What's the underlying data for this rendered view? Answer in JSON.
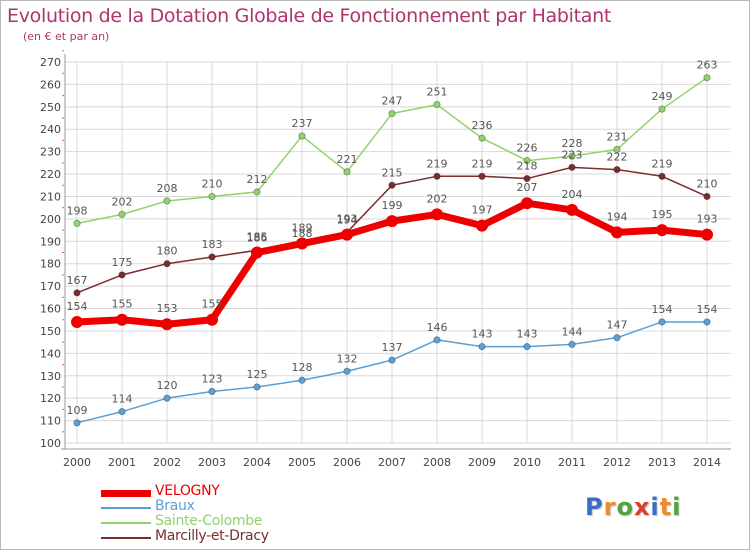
{
  "title": "Evolution de la Dotation Globale de Fonctionnement par Habitant",
  "subtitle": "(en € et par an)",
  "logo": {
    "text": "Proxiti",
    "letter_colors": [
      "#3b6cc6",
      "#f08a2c",
      "#4fa53b",
      "#e03c2c",
      "#3b6cc6",
      "#f08a2c",
      "#4fa53b"
    ]
  },
  "chart_data": {
    "type": "line",
    "x": [
      "2000",
      "2001",
      "2002",
      "2003",
      "2004",
      "2005",
      "2006",
      "2007",
      "2008",
      "2009",
      "2010",
      "2011",
      "2012",
      "2013",
      "2014"
    ],
    "ylim": [
      100,
      270
    ],
    "yticks": [
      "100",
      "110",
      "120",
      "130",
      "140",
      "150",
      "160",
      "170",
      "180",
      "190",
      "200",
      "210",
      "220",
      "230",
      "240",
      "250",
      "260",
      "270"
    ],
    "grid": true,
    "legend_position": "bottom-left",
    "series": [
      {
        "name": "Sainte-Colombe",
        "color": "#90d36a",
        "values": [
          198,
          202,
          208,
          210,
          212,
          237,
          221,
          247,
          251,
          236,
          226,
          228,
          231,
          249,
          263
        ],
        "labels": [
          "198",
          "202",
          "208",
          "210",
          "212",
          "237",
          "221",
          "247",
          "251",
          "236",
          "226",
          "228",
          "231",
          "249",
          "263"
        ]
      },
      {
        "name": "Marcilly-et-Dracy",
        "color": "#7a2e2e",
        "values": [
          167,
          175,
          180,
          183,
          186,
          188,
          194,
          215,
          219,
          219,
          218,
          223,
          222,
          219,
          210
        ],
        "labels": [
          "167",
          "175",
          "180",
          "183",
          "186",
          "188",
          "194",
          "215",
          "219",
          "219",
          "218",
          "223",
          "222",
          "219",
          "210"
        ]
      },
      {
        "name": "Braux",
        "color": "#5b9fd4",
        "values": [
          109,
          114,
          120,
          123,
          125,
          128,
          132,
          137,
          146,
          143,
          143,
          144,
          147,
          154,
          154
        ],
        "labels": [
          "109",
          "114",
          "120",
          "123",
          "125",
          "128",
          "132",
          "137",
          "146",
          "143",
          "143",
          "144",
          "147",
          "154",
          "154"
        ]
      },
      {
        "name": "VELOGNY",
        "color": "#ee0000",
        "values": [
          154,
          155,
          153,
          155,
          185,
          189,
          193,
          199,
          202,
          197,
          207,
          204,
          194,
          195,
          193
        ],
        "labels": [
          "154",
          "155",
          "153",
          "155",
          "185",
          "189",
          "193",
          "199",
          "202",
          "197",
          "207",
          "204",
          "194",
          "195",
          "193"
        ]
      }
    ],
    "legend": [
      {
        "name": "VELOGNY",
        "color": "#ee0000",
        "width": 7
      },
      {
        "name": "Braux",
        "color": "#5b9fd4",
        "width": 2
      },
      {
        "name": "Sainte-Colombe",
        "color": "#90d36a",
        "width": 2
      },
      {
        "name": "Marcilly-et-Dracy",
        "color": "#7a2e2e",
        "width": 2
      }
    ]
  }
}
